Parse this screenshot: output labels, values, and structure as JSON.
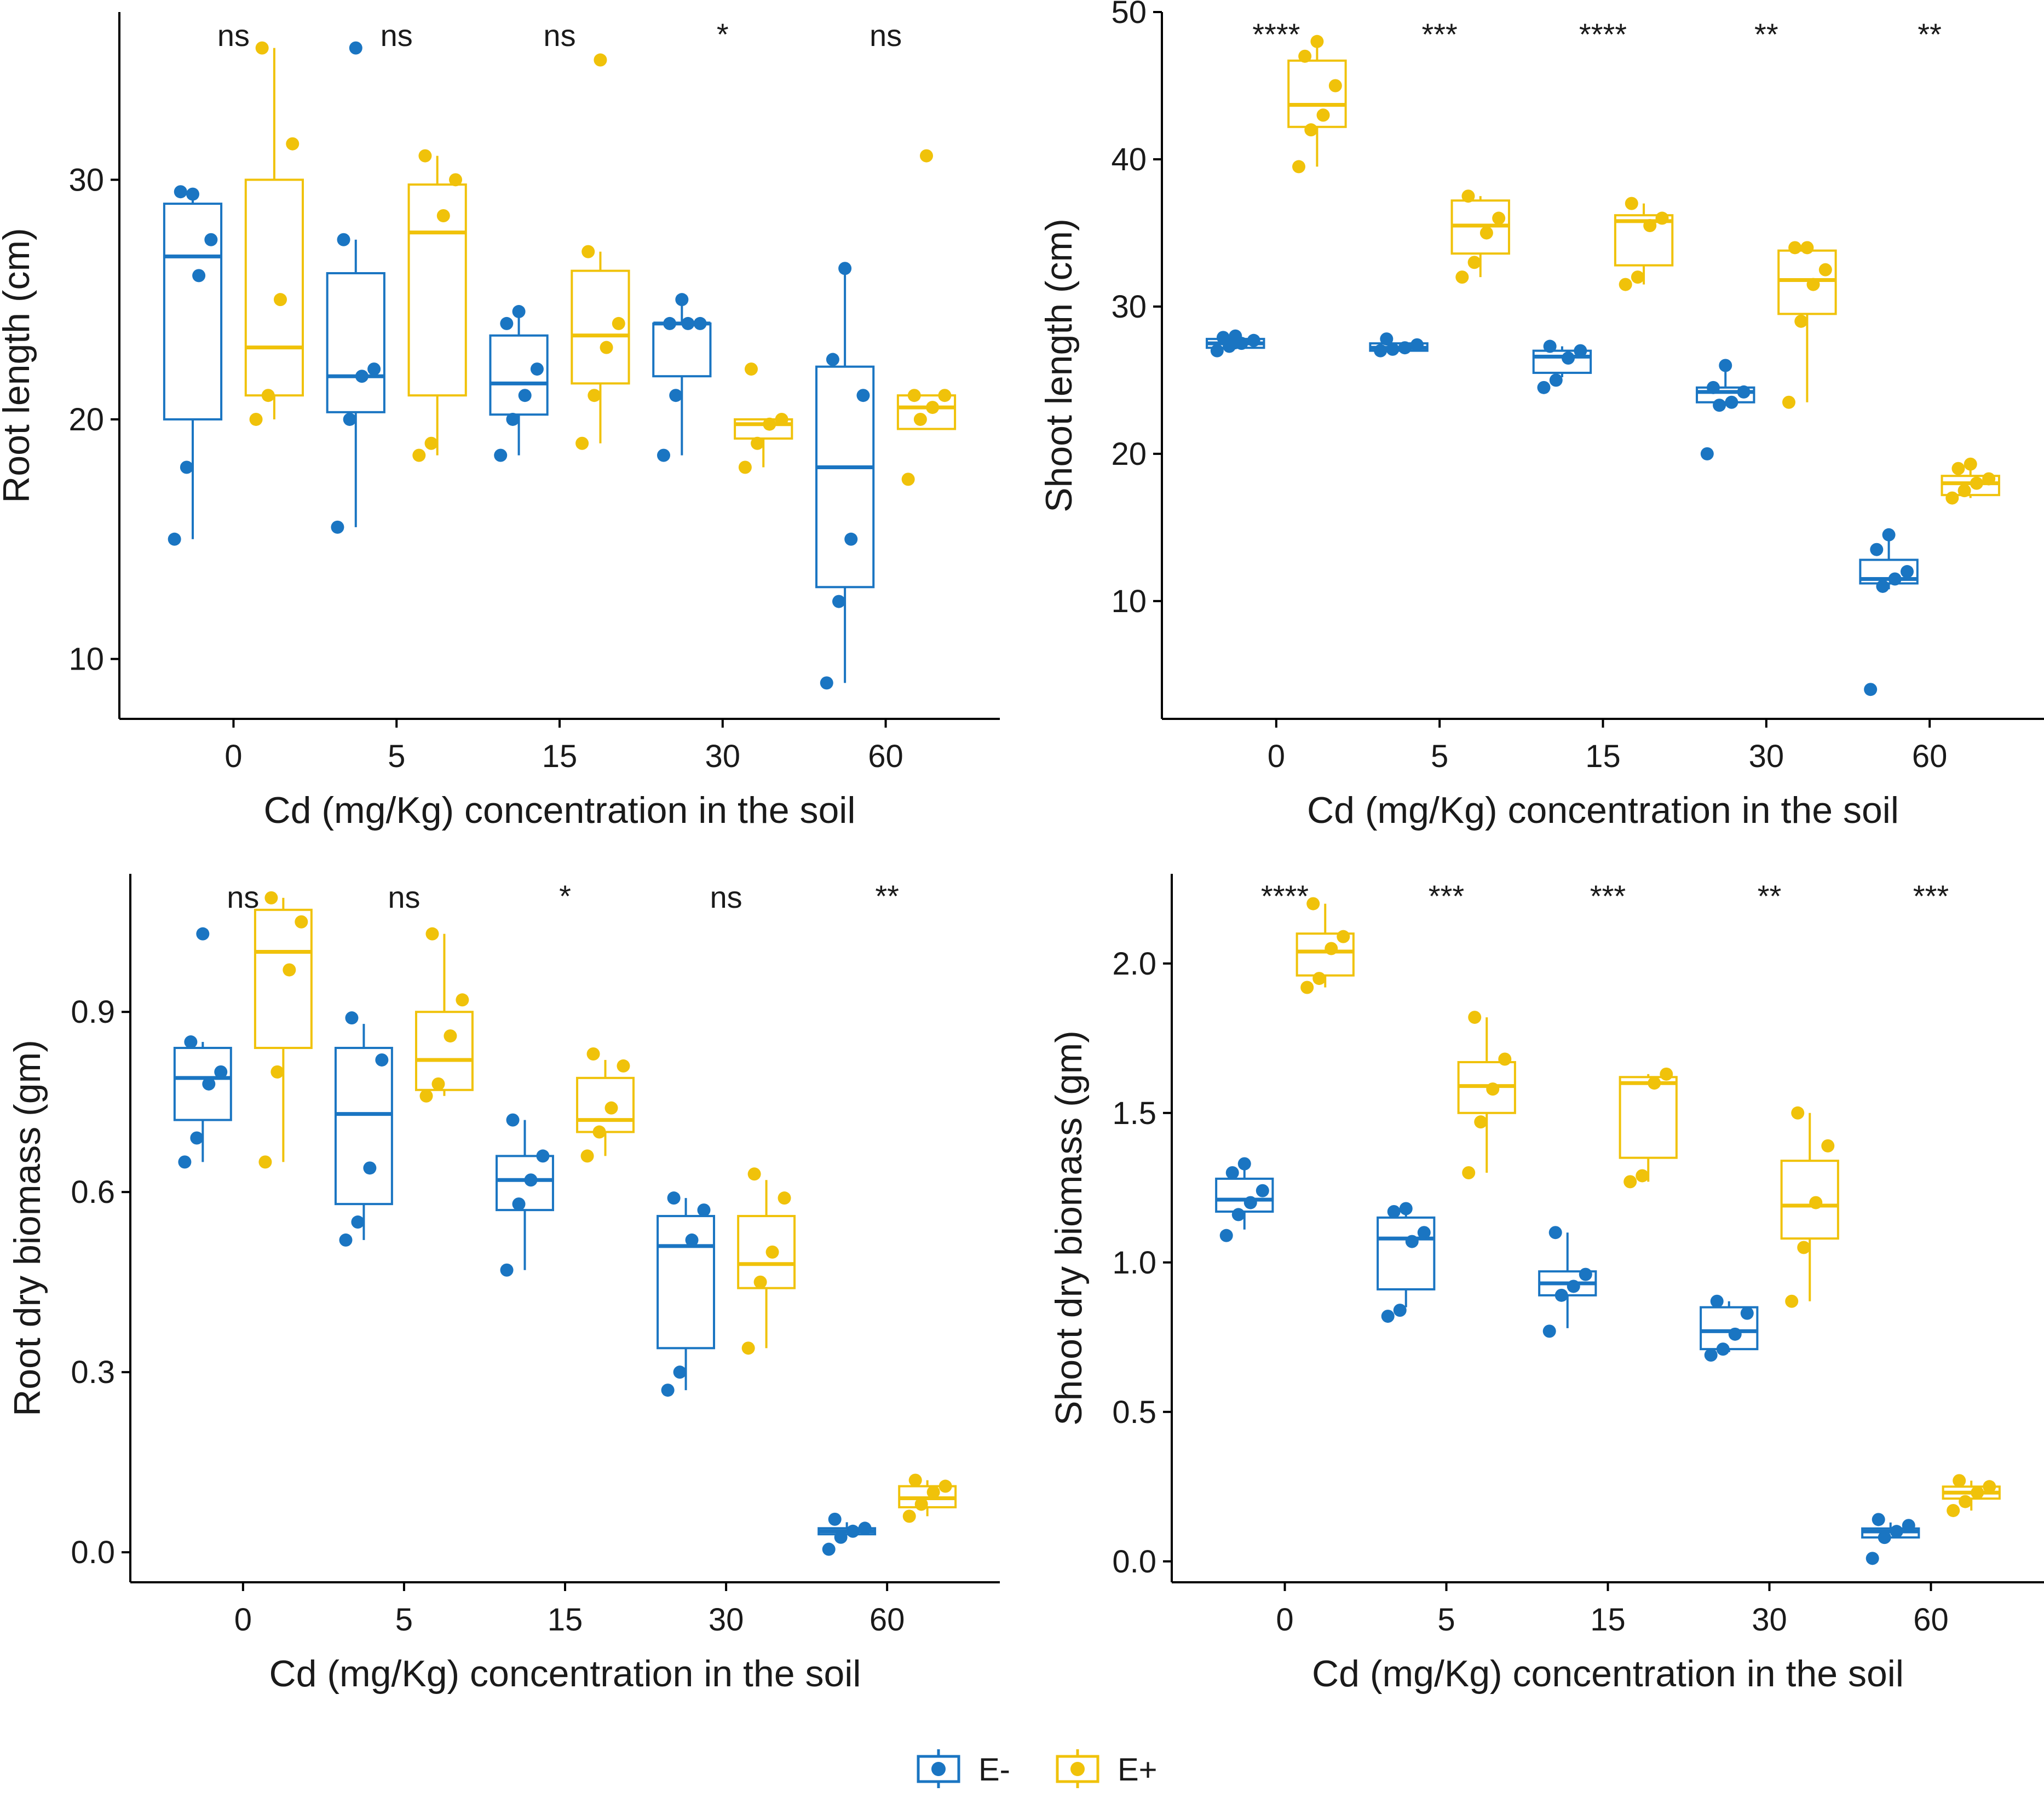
{
  "colors": {
    "E-": "#1a75c2",
    "E+": "#f0c20a",
    "axis": "#000000"
  },
  "legend": {
    "items": [
      {
        "key": "E-",
        "label": "E-"
      },
      {
        "key": "E+",
        "label": "E+"
      }
    ]
  },
  "chart_data": [
    {
      "id": "root-length",
      "type": "box",
      "title": "",
      "xlabel": "Cd (mg/Kg) concentration in the soil",
      "ylabel": "Root length (cm)",
      "ylim": [
        7.5,
        37
      ],
      "yticks": [
        10,
        20,
        30
      ],
      "categories": [
        "0",
        "5",
        "15",
        "30",
        "60"
      ],
      "significance": [
        "ns",
        "ns",
        "ns",
        "*",
        "ns"
      ],
      "series": [
        {
          "name": "E-",
          "boxes": [
            {
              "min": 15,
              "q1": 20,
              "median": 26.8,
              "q3": 29,
              "max": 29.5,
              "points": [
                15,
                18,
                26,
                27.5,
                29.5,
                29.4
              ]
            },
            {
              "min": 15.5,
              "q1": 20.3,
              "median": 21.8,
              "q3": 26.1,
              "max": 27.5,
              "points": [
                15.5,
                20,
                21.8,
                22.1,
                27.5,
                35.5
              ]
            },
            {
              "min": 18.5,
              "q1": 20.2,
              "median": 21.5,
              "q3": 23.5,
              "max": 24.5,
              "points": [
                18.5,
                20,
                21,
                22.1,
                24,
                24.5
              ]
            },
            {
              "min": 18.5,
              "q1": 21.8,
              "median": 24,
              "q3": 24,
              "max": 25,
              "points": [
                18.5,
                21,
                24,
                24,
                24,
                25
              ]
            },
            {
              "min": 9,
              "q1": 13,
              "median": 18,
              "q3": 22.2,
              "max": 26.3,
              "points": [
                9,
                12.4,
                15,
                21,
                22.5,
                26.3
              ]
            }
          ]
        },
        {
          "name": "E+",
          "boxes": [
            {
              "min": 20,
              "q1": 21,
              "median": 23,
              "q3": 30,
              "max": 35.5,
              "points": [
                20,
                21,
                25,
                31.5,
                35.5
              ]
            },
            {
              "min": 18.5,
              "q1": 21,
              "median": 27.8,
              "q3": 29.8,
              "max": 31,
              "points": [
                18.5,
                19,
                28.5,
                30,
                31
              ]
            },
            {
              "min": 19,
              "q1": 21.5,
              "median": 23.5,
              "q3": 26.2,
              "max": 27,
              "points": [
                19,
                21,
                23,
                24,
                27,
                35
              ]
            },
            {
              "min": 18,
              "q1": 19.2,
              "median": 19.8,
              "q3": 20,
              "max": 20,
              "points": [
                18,
                19,
                19.8,
                20,
                22.1
              ]
            },
            {
              "min": 19.6,
              "q1": 19.6,
              "median": 20.5,
              "q3": 21,
              "max": 21,
              "points": [
                17.5,
                20,
                20.5,
                21,
                21,
                31
              ]
            }
          ]
        }
      ]
    },
    {
      "id": "shoot-length",
      "type": "box",
      "title": "",
      "xlabel": "Cd (mg/Kg) concentration in the soil",
      "ylabel": "Shoot length (cm)",
      "ylim": [
        2,
        50
      ],
      "yticks": [
        10,
        20,
        30,
        40,
        50
      ],
      "categories": [
        "0",
        "5",
        "15",
        "30",
        "60"
      ],
      "significance": [
        "****",
        "***",
        "****",
        "**",
        "**"
      ],
      "series": [
        {
          "name": "E-",
          "boxes": [
            {
              "min": 27.1,
              "q1": 27.2,
              "median": 27.5,
              "q3": 27.8,
              "max": 27.9,
              "points": [
                27,
                27.3,
                27.5,
                27.7,
                27.9,
                28
              ]
            },
            {
              "min": 27,
              "q1": 27,
              "median": 27.2,
              "q3": 27.5,
              "max": 27.5,
              "points": [
                27,
                27.1,
                27.2,
                27.4,
                27.8
              ]
            },
            {
              "min": 25.2,
              "q1": 25.5,
              "median": 26.6,
              "q3": 27,
              "max": 27.3,
              "points": [
                24.5,
                25,
                26.5,
                27,
                27.3
              ]
            },
            {
              "min": 23.3,
              "q1": 23.5,
              "median": 24.2,
              "q3": 24.5,
              "max": 26,
              "points": [
                20,
                23.3,
                23.5,
                24.2,
                24.5,
                26
              ]
            },
            {
              "min": 10.8,
              "q1": 11.2,
              "median": 11.5,
              "q3": 12.8,
              "max": 14.2,
              "points": [
                4,
                11,
                11.5,
                12,
                13.5,
                14.5
              ]
            }
          ]
        },
        {
          "name": "E+",
          "boxes": [
            {
              "min": 39.5,
              "q1": 42.2,
              "median": 43.7,
              "q3": 46.7,
              "max": 48,
              "points": [
                39.5,
                42,
                43,
                45,
                47,
                48
              ]
            },
            {
              "min": 32,
              "q1": 33.6,
              "median": 35.5,
              "q3": 37.2,
              "max": 37.5,
              "points": [
                32,
                33,
                35,
                36,
                37.5
              ]
            },
            {
              "min": 31.5,
              "q1": 32.8,
              "median": 35.8,
              "q3": 36.2,
              "max": 37,
              "points": [
                31.5,
                32,
                35.5,
                36,
                37
              ]
            },
            {
              "min": 23.5,
              "q1": 29.5,
              "median": 31.8,
              "q3": 33.8,
              "max": 34.2,
              "points": [
                23.5,
                29,
                31.5,
                32.5,
                34,
                34
              ]
            },
            {
              "min": 17,
              "q1": 17.2,
              "median": 18,
              "q3": 18.5,
              "max": 19.2,
              "points": [
                17,
                17.5,
                18,
                18.3,
                19,
                19.3
              ]
            }
          ]
        }
      ]
    },
    {
      "id": "root-dry-biomass",
      "type": "box",
      "title": "",
      "xlabel": "Cd (mg/Kg) concentration in the soil",
      "ylabel": "Root dry biomass (gm)",
      "ylim": [
        -0.05,
        1.13
      ],
      "yticks": [
        0.0,
        0.3,
        0.6,
        0.9
      ],
      "categories": [
        "0",
        "5",
        "15",
        "30",
        "60"
      ],
      "significance": [
        "ns",
        "ns",
        "*",
        "ns",
        "**"
      ],
      "series": [
        {
          "name": "E-",
          "boxes": [
            {
              "min": 0.65,
              "q1": 0.72,
              "median": 0.79,
              "q3": 0.84,
              "max": 0.85,
              "points": [
                0.65,
                0.69,
                0.78,
                0.8,
                0.85,
                1.03
              ]
            },
            {
              "min": 0.52,
              "q1": 0.58,
              "median": 0.73,
              "q3": 0.84,
              "max": 0.88,
              "points": [
                0.52,
                0.55,
                0.64,
                0.82,
                0.89
              ]
            },
            {
              "min": 0.47,
              "q1": 0.57,
              "median": 0.62,
              "q3": 0.66,
              "max": 0.72,
              "points": [
                0.47,
                0.58,
                0.62,
                0.66,
                0.72
              ]
            },
            {
              "min": 0.27,
              "q1": 0.34,
              "median": 0.51,
              "q3": 0.56,
              "max": 0.59,
              "points": [
                0.27,
                0.3,
                0.52,
                0.57,
                0.59
              ]
            },
            {
              "min": 0.03,
              "q1": 0.03,
              "median": 0.035,
              "q3": 0.04,
              "max": 0.05,
              "points": [
                0.005,
                0.025,
                0.035,
                0.04,
                0.055
              ]
            }
          ]
        },
        {
          "name": "E+",
          "boxes": [
            {
              "min": 0.65,
              "q1": 0.84,
              "median": 1.0,
              "q3": 1.07,
              "max": 1.09,
              "points": [
                0.65,
                0.8,
                0.97,
                1.05,
                1.09
              ]
            },
            {
              "min": 0.76,
              "q1": 0.77,
              "median": 0.82,
              "q3": 0.9,
              "max": 1.03,
              "points": [
                0.76,
                0.78,
                0.86,
                0.92,
                1.03
              ]
            },
            {
              "min": 0.66,
              "q1": 0.7,
              "median": 0.72,
              "q3": 0.79,
              "max": 0.82,
              "points": [
                0.66,
                0.7,
                0.74,
                0.81,
                0.83
              ]
            },
            {
              "min": 0.34,
              "q1": 0.44,
              "median": 0.48,
              "q3": 0.56,
              "max": 0.62,
              "points": [
                0.34,
                0.45,
                0.5,
                0.59,
                0.63
              ]
            },
            {
              "min": 0.06,
              "q1": 0.075,
              "median": 0.09,
              "q3": 0.11,
              "max": 0.12,
              "points": [
                0.06,
                0.08,
                0.1,
                0.11,
                0.12
              ]
            }
          ]
        }
      ]
    },
    {
      "id": "shoot-dry-biomass",
      "type": "box",
      "title": "",
      "xlabel": "Cd (mg/Kg) concentration in the soil",
      "ylabel": "Shoot dry biomass (gm)",
      "ylim": [
        -0.07,
        2.3
      ],
      "yticks": [
        0.0,
        0.5,
        1.0,
        1.5,
        2.0
      ],
      "categories": [
        "0",
        "5",
        "15",
        "30",
        "60"
      ],
      "significance": [
        "****",
        "***",
        "***",
        "**",
        "***"
      ],
      "series": [
        {
          "name": "E-",
          "boxes": [
            {
              "min": 1.11,
              "q1": 1.17,
              "median": 1.21,
              "q3": 1.28,
              "max": 1.32,
              "points": [
                1.09,
                1.16,
                1.2,
                1.24,
                1.3,
                1.33
              ]
            },
            {
              "min": 0.85,
              "q1": 0.91,
              "median": 1.08,
              "q3": 1.15,
              "max": 1.18,
              "points": [
                0.82,
                0.84,
                1.07,
                1.1,
                1.17,
                1.18
              ]
            },
            {
              "min": 0.78,
              "q1": 0.89,
              "median": 0.93,
              "q3": 0.97,
              "max": 1.1,
              "points": [
                0.77,
                0.89,
                0.92,
                0.96,
                1.1
              ]
            },
            {
              "min": 0.7,
              "q1": 0.71,
              "median": 0.77,
              "q3": 0.85,
              "max": 0.87,
              "points": [
                0.69,
                0.71,
                0.76,
                0.83,
                0.87
              ]
            },
            {
              "min": 0.08,
              "q1": 0.08,
              "median": 0.1,
              "q3": 0.11,
              "max": 0.13,
              "points": [
                0.01,
                0.08,
                0.1,
                0.12,
                0.14
              ]
            }
          ]
        },
        {
          "name": "E+",
          "boxes": [
            {
              "min": 1.92,
              "q1": 1.96,
              "median": 2.04,
              "q3": 2.1,
              "max": 2.2,
              "points": [
                1.92,
                1.95,
                2.05,
                2.09,
                2.2
              ]
            },
            {
              "min": 1.3,
              "q1": 1.5,
              "median": 1.59,
              "q3": 1.67,
              "max": 1.82,
              "points": [
                1.3,
                1.47,
                1.58,
                1.68,
                1.82
              ]
            },
            {
              "min": 1.27,
              "q1": 1.35,
              "median": 1.6,
              "q3": 1.62,
              "max": 1.63,
              "points": [
                1.27,
                1.29,
                1.6,
                1.63
              ]
            },
            {
              "min": 0.87,
              "q1": 1.08,
              "median": 1.19,
              "q3": 1.34,
              "max": 1.5,
              "points": [
                0.87,
                1.05,
                1.2,
                1.39,
                1.5
              ]
            },
            {
              "min": 0.17,
              "q1": 0.21,
              "median": 0.23,
              "q3": 0.25,
              "max": 0.27,
              "points": [
                0.17,
                0.2,
                0.23,
                0.25,
                0.27
              ]
            }
          ]
        }
      ]
    }
  ]
}
